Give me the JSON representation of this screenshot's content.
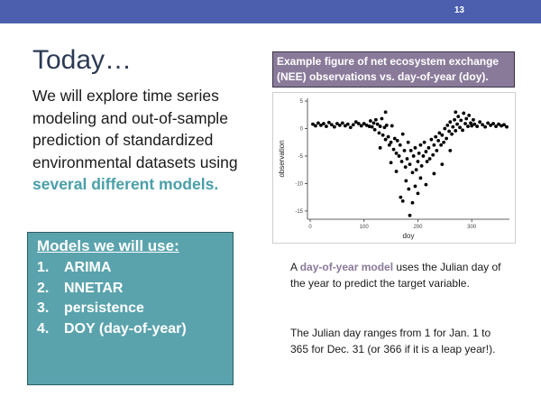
{
  "slide_number": "13",
  "title": "Today…",
  "intro": {
    "text_before": "We will explore time series modeling and out-of-sample prediction of standardized environmental datasets using ",
    "highlight": "several different models."
  },
  "models": {
    "heading": "Models we will use:",
    "items": [
      {
        "num": "1.",
        "label": "ARIMA"
      },
      {
        "num": "2.",
        "label": "NNETAR"
      },
      {
        "num": "3.",
        "label": "persistence"
      },
      {
        "num": "4.",
        "label": "DOY (day-of-year)"
      }
    ]
  },
  "figure_caption": "Example figure of net ecosystem exchange (NEE) observations vs. day-of-year (doy).",
  "chart_data": {
    "type": "scatter",
    "title": "",
    "xlabel": "doy",
    "ylabel": "observation",
    "xlim": [
      -5,
      370
    ],
    "ylim": [
      -16.5,
      5.5
    ],
    "xticks": [
      0,
      100,
      200,
      300
    ],
    "yticks": [
      5,
      0,
      -5,
      -10,
      -15
    ],
    "grid": false,
    "legend": "none",
    "point_color": "#000000",
    "points": [
      [
        5,
        0.8
      ],
      [
        10,
        0.5
      ],
      [
        15,
        1.0
      ],
      [
        20,
        0.6
      ],
      [
        25,
        0.9
      ],
      [
        30,
        0.4
      ],
      [
        35,
        1.1
      ],
      [
        40,
        0.7
      ],
      [
        45,
        0.3
      ],
      [
        50,
        0.9
      ],
      [
        55,
        0.6
      ],
      [
        60,
        1.0
      ],
      [
        65,
        0.5
      ],
      [
        70,
        0.8
      ],
      [
        75,
        0.2
      ],
      [
        80,
        0.7
      ],
      [
        85,
        1.2
      ],
      [
        90,
        0.9
      ],
      [
        95,
        0.5
      ],
      [
        100,
        0.9
      ],
      [
        105,
        0.6
      ],
      [
        110,
        0.4
      ],
      [
        112,
        1.4
      ],
      [
        115,
        0.3
      ],
      [
        118,
        1.0
      ],
      [
        120,
        -0.2
      ],
      [
        122,
        1.6
      ],
      [
        125,
        0.8
      ],
      [
        128,
        -0.8
      ],
      [
        130,
        0.4
      ],
      [
        133,
        1.8
      ],
      [
        135,
        -1.2
      ],
      [
        138,
        0.2
      ],
      [
        140,
        -2.0
      ],
      [
        142,
        0.6
      ],
      [
        145,
        -1.5
      ],
      [
        147,
        -3.0
      ],
      [
        150,
        -2.5
      ],
      [
        152,
        0.5
      ],
      [
        155,
        -3.8
      ],
      [
        157,
        -1.8
      ],
      [
        160,
        -4.5
      ],
      [
        162,
        -2.2
      ],
      [
        165,
        -5.0
      ],
      [
        167,
        -3.0
      ],
      [
        170,
        -6.0
      ],
      [
        172,
        -1.0
      ],
      [
        175,
        -4.0
      ],
      [
        177,
        -7.0
      ],
      [
        180,
        -5.5
      ],
      [
        182,
        -2.5
      ],
      [
        185,
        -6.5
      ],
      [
        187,
        -4.0
      ],
      [
        190,
        -8.0
      ],
      [
        192,
        -5.0
      ],
      [
        195,
        -3.5
      ],
      [
        197,
        -7.5
      ],
      [
        200,
        -6.0
      ],
      [
        202,
        -4.5
      ],
      [
        205,
        -3.0
      ],
      [
        207,
        -6.8
      ],
      [
        210,
        -5.0
      ],
      [
        212,
        -2.5
      ],
      [
        215,
        -4.2
      ],
      [
        217,
        -6.0
      ],
      [
        220,
        -3.5
      ],
      [
        222,
        -5.5
      ],
      [
        225,
        -2.0
      ],
      [
        228,
        -4.8
      ],
      [
        230,
        -3.0
      ],
      [
        233,
        -1.5
      ],
      [
        235,
        -4.0
      ],
      [
        238,
        -2.2
      ],
      [
        240,
        -0.8
      ],
      [
        243,
        -3.0
      ],
      [
        245,
        -1.2
      ],
      [
        248,
        -2.5
      ],
      [
        250,
        0.0
      ],
      [
        253,
        -1.8
      ],
      [
        255,
        0.6
      ],
      [
        258,
        -0.5
      ],
      [
        260,
        1.2
      ],
      [
        263,
        -1.0
      ],
      [
        265,
        0.3
      ],
      [
        268,
        1.6
      ],
      [
        270,
        -0.4
      ],
      [
        273,
        0.8
      ],
      [
        275,
        2.2
      ],
      [
        278,
        0.2
      ],
      [
        280,
        1.5
      ],
      [
        283,
        -0.3
      ],
      [
        285,
        2.8
      ],
      [
        288,
        0.9
      ],
      [
        290,
        1.8
      ],
      [
        293,
        0.4
      ],
      [
        295,
        2.4
      ],
      [
        298,
        1.0
      ],
      [
        300,
        0.5
      ],
      [
        303,
        1.6
      ],
      [
        305,
        0.8
      ],
      [
        310,
        0.4
      ],
      [
        315,
        1.2
      ],
      [
        320,
        0.7
      ],
      [
        325,
        0.3
      ],
      [
        330,
        1.0
      ],
      [
        335,
        0.6
      ],
      [
        340,
        0.9
      ],
      [
        345,
        0.4
      ],
      [
        350,
        0.8
      ],
      [
        355,
        0.5
      ],
      [
        360,
        0.7
      ],
      [
        365,
        0.3
      ],
      [
        168,
        -12.5
      ],
      [
        172,
        -13.2
      ],
      [
        185,
        -15.8
      ],
      [
        178,
        -9.5
      ],
      [
        195,
        -10.5
      ],
      [
        205,
        -9.0
      ],
      [
        230,
        -8.2
      ],
      [
        183,
        -11.0
      ],
      [
        140,
        3.0
      ],
      [
        215,
        -10.2
      ],
      [
        160,
        -7.8
      ],
      [
        150,
        -6.2
      ],
      [
        245,
        -6.5
      ],
      [
        260,
        -4.0
      ],
      [
        130,
        -3.5
      ],
      [
        270,
        3.0
      ],
      [
        200,
        -11.8
      ],
      [
        190,
        -13.5
      ]
    ]
  },
  "desc": {
    "p1_before": "A ",
    "p1_highlight": "day-of-year model",
    "p1_after": " uses the Julian day of the year to predict the target variable.",
    "p2": "The Julian day ranges from 1 for Jan. 1 to 365 for Dec. 31 (or 366 if it is a leap year!)."
  }
}
